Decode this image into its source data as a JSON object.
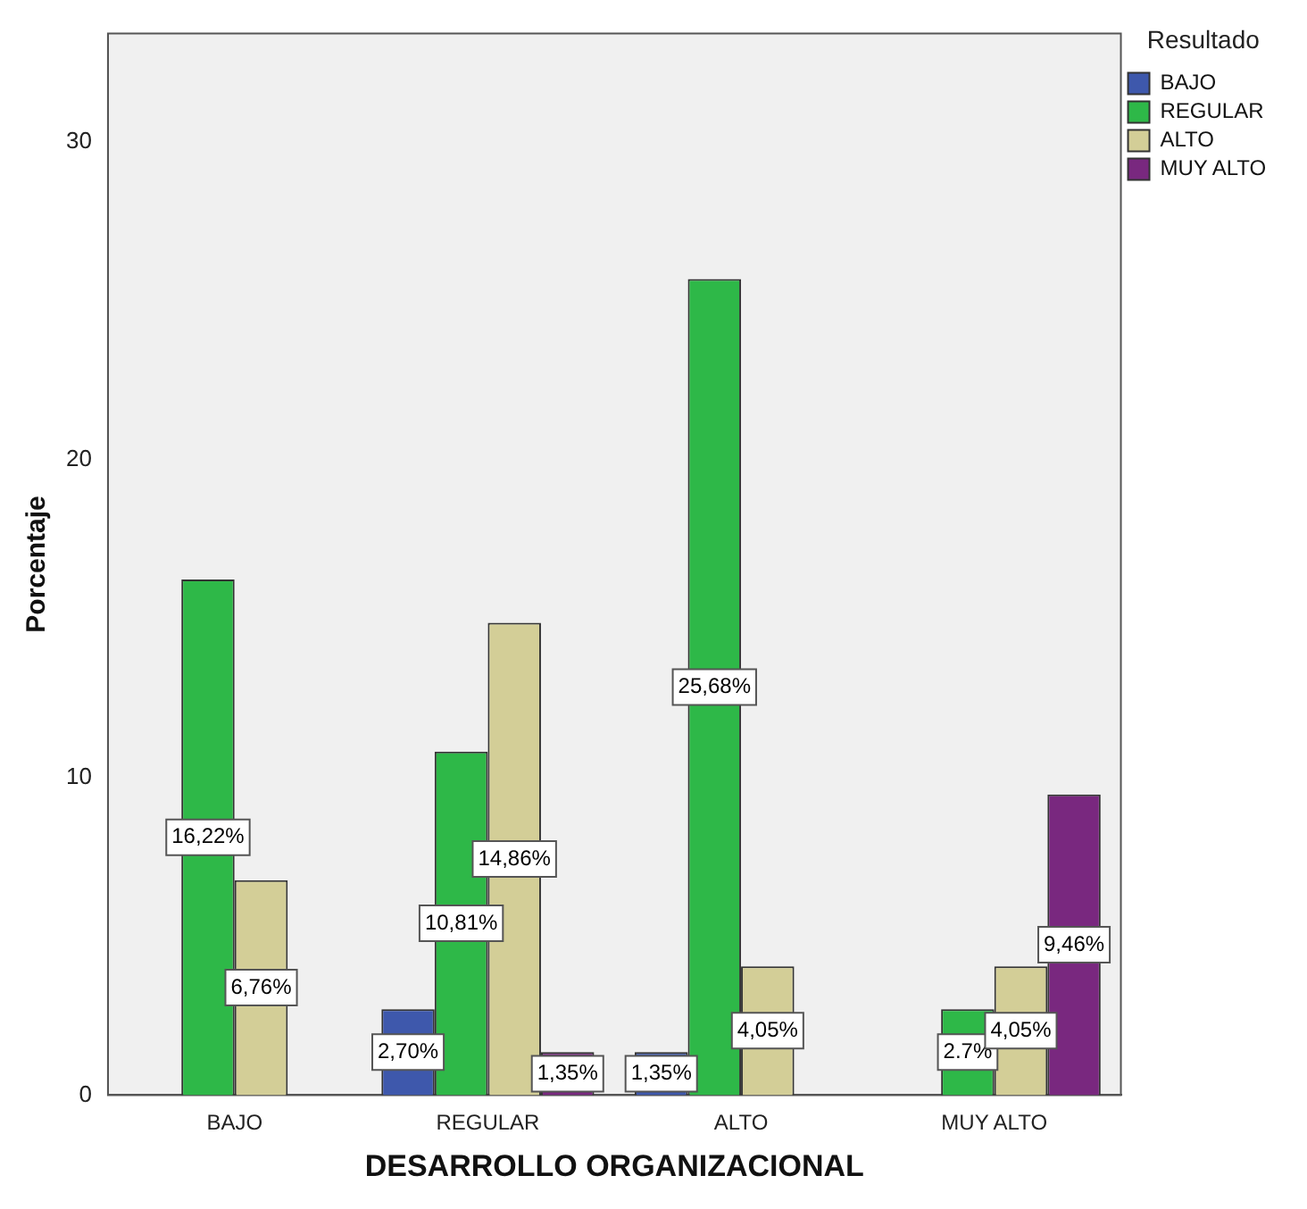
{
  "chart_data": {
    "type": "bar",
    "xlabel": "DESARROLLO ORGANIZACIONAL",
    "ylabel": "Porcentaje",
    "legend_title": "Resultado",
    "legend": "right",
    "categories": [
      "BAJO",
      "REGULAR",
      "ALTO",
      "MUY ALTO"
    ],
    "series": [
      {
        "name": "BAJO",
        "color": "#3e58ac",
        "values": [
          null,
          2.7,
          1.35,
          null
        ],
        "value_labels": [
          null,
          "2,70%",
          "1,35%",
          null
        ]
      },
      {
        "name": "REGULAR",
        "color": "#2eb848",
        "values": [
          16.22,
          10.81,
          25.68,
          2.7
        ],
        "value_labels": [
          "16,22%",
          "10,81%",
          "25,68%",
          "2.7%"
        ]
      },
      {
        "name": "ALTO",
        "color": "#d3ce97",
        "values": [
          6.76,
          14.86,
          4.05,
          4.05
        ],
        "value_labels": [
          "6,76%",
          "14,86%",
          "4,05%",
          "4,05%"
        ]
      },
      {
        "name": "MUY ALTO",
        "color": "#79287f",
        "values": [
          null,
          1.35,
          null,
          9.46
        ],
        "value_labels": [
          null,
          "1,35%",
          null,
          "9,46%"
        ]
      }
    ],
    "ylim": [
      0,
      33.4
    ],
    "yticks": [
      0,
      10,
      20,
      30
    ],
    "grid": false
  }
}
